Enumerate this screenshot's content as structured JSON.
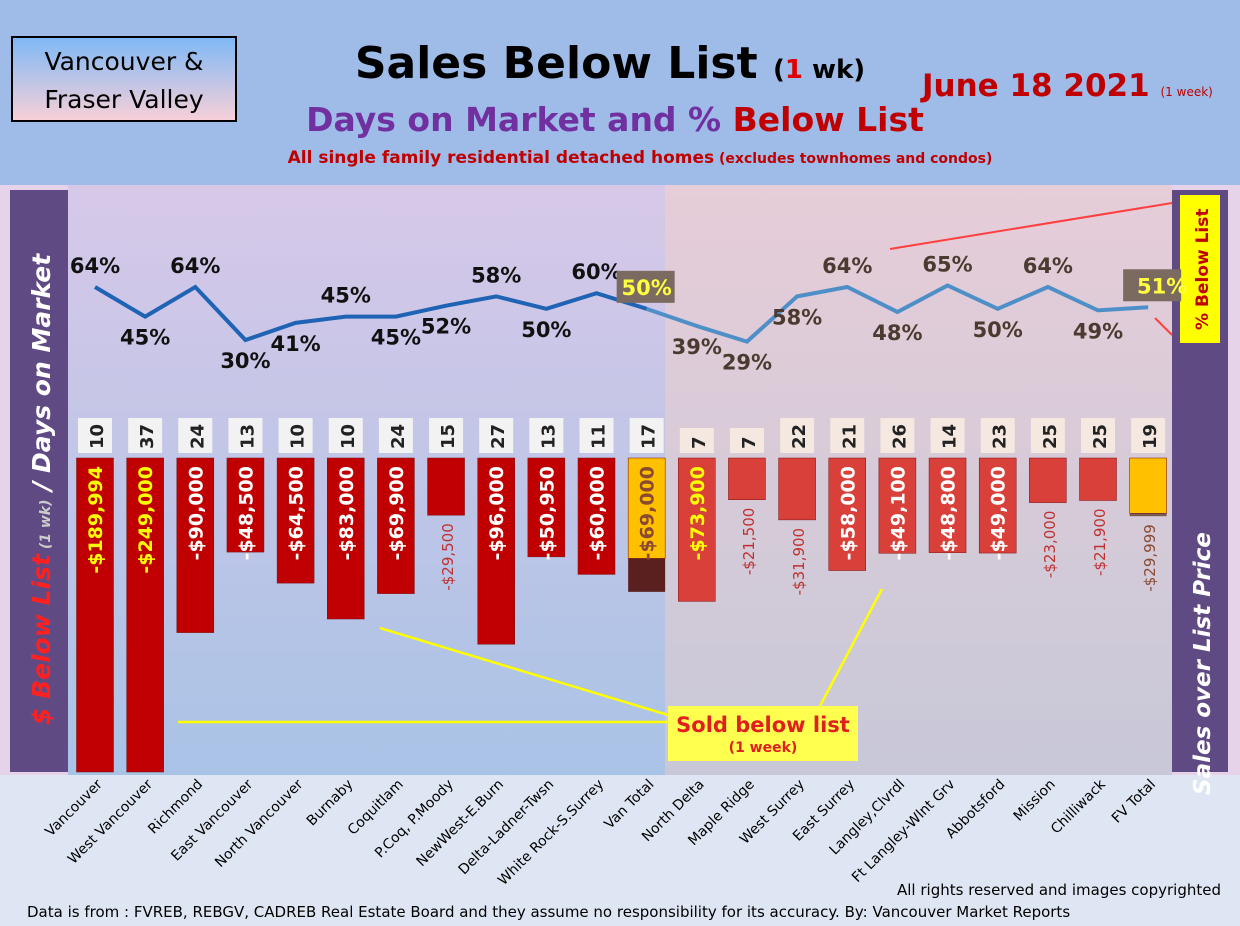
{
  "header": {
    "logo": [
      "Vancouver &",
      "Fraser Valley"
    ],
    "title": "Sales Below List",
    "title_paren_open": "(",
    "title_num": "1",
    "title_paren_rest": " wk)",
    "subtitle_a": "Days on Market and % ",
    "subtitle_b": "Below List",
    "subtitle2": "All single family residential detached homes",
    "subtitle2_small": " (excludes townhomes and condos)",
    "date": "June 18  2021",
    "date_small": "(1 week)"
  },
  "footer": {
    "rights": "All rights reserved and  images copyrighted",
    "source": "Data is from : FVREB, REBGV, CADREB Real Estate Board and they assume no responsibility for its accuracy. By: Vancouver Market Reports"
  },
  "chart_data": {
    "type": "bar+line",
    "left_axis_label": {
      "a": "$ Below List",
      "b": " (1 wk)",
      "c": " / Days on Market"
    },
    "right_axis_label": "Sales over List Price",
    "right_legend": "% Below List",
    "annotation": {
      "main": "Sold below list",
      "sub": "(1 week)"
    },
    "categories": [
      "Vancouver",
      "West Vancouver",
      "Richmond",
      "East Vancouver",
      "North Vancouver",
      "Burnaby",
      "Coquitlam",
      "P.Coq, P.Moody",
      "NewWest-E.Burn",
      "Delta-Ladner-Twsn",
      "White Rock-S.Surrey",
      "Van Total",
      "North Delta",
      "Maple Ridge",
      "West Surrey",
      "East Surrey",
      "Langley,Clvrdl",
      "Ft Langley-Wlnt Grv",
      "Abbotsford",
      "Mission",
      "Chilliwack",
      "FV Total"
    ],
    "days_on_market": [
      10,
      37,
      24,
      13,
      10,
      10,
      24,
      15,
      27,
      13,
      11,
      17,
      7,
      7,
      22,
      21,
      26,
      14,
      23,
      25,
      25,
      19
    ],
    "dollars_below_list": [
      -189994,
      -249000,
      -90000,
      -48500,
      -64500,
      -83000,
      -69900,
      -29500,
      -96000,
      -50950,
      -60000,
      -69000,
      -73900,
      -21500,
      -31900,
      -58000,
      -49100,
      -48800,
      -49000,
      -23000,
      -21900,
      -29999
    ],
    "dollar_labels": [
      "-$189,994",
      "-$249,000",
      "-$90,000",
      "-$48,500",
      "-$64,500",
      "-$83,000",
      "-$69,900",
      "-$29,500",
      "-$96,000",
      "-$50,950",
      "-$60,000",
      "-$69,000",
      "-$73,900",
      "-$21,500",
      "-$31,900",
      "-$58,000",
      "-$49,100",
      "-$48,800",
      "-$49,000",
      "-$23,000",
      "-$21,900",
      "-$29,999"
    ],
    "pct_below_list": [
      64,
      45,
      64,
      30,
      41,
      45,
      45,
      52,
      58,
      50,
      60,
      50,
      39,
      29,
      58,
      64,
      48,
      65,
      50,
      64,
      49,
      51
    ],
    "colors": {
      "van_bar": "#c00000",
      "fv_bar": "#d9403a",
      "total_bar": "#ffc000",
      "line": "#2e75b6"
    }
  }
}
